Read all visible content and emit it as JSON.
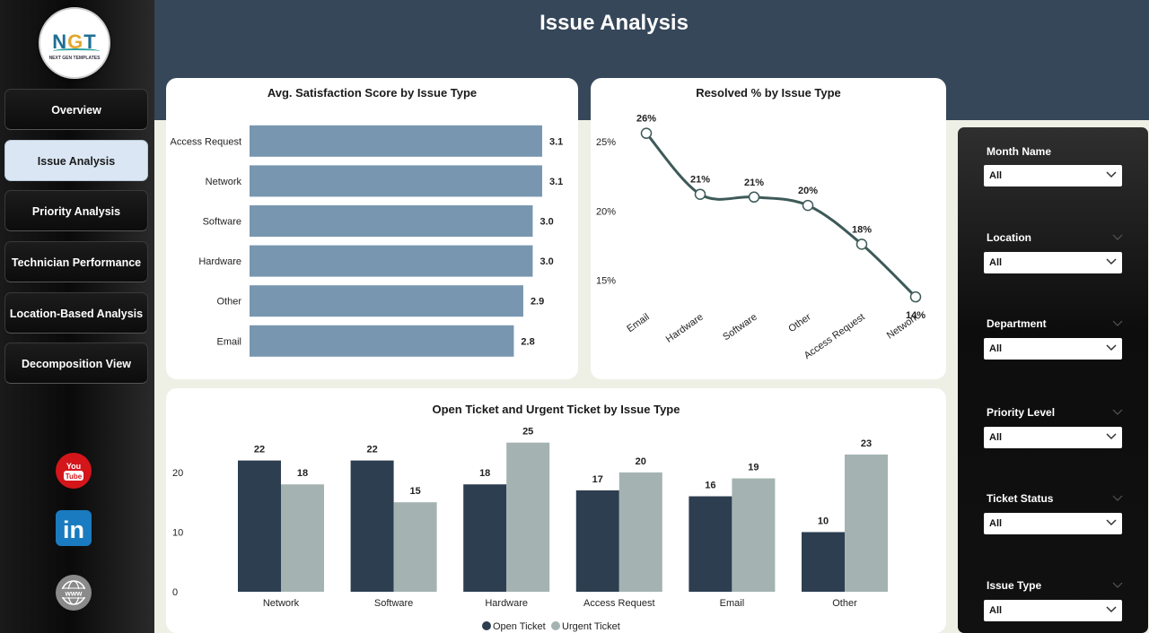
{
  "page": {
    "title": "Issue Analysis"
  },
  "brand": {
    "logo_text": "NGT",
    "logo_subtext": "NEXT GEN TEMPLATES"
  },
  "nav": {
    "items": [
      {
        "label": "Overview",
        "active": false
      },
      {
        "label": "Issue Analysis",
        "active": true
      },
      {
        "label": "Priority Analysis",
        "active": false
      },
      {
        "label": "Technician Performance",
        "active": false
      },
      {
        "label": "Location-Based Analysis",
        "active": false
      },
      {
        "label": "Decomposition View",
        "active": false
      }
    ],
    "social": {
      "youtube_top": "You",
      "youtube_bottom": "Tube",
      "linkedin": "in",
      "web": "www"
    }
  },
  "filters": [
    {
      "label": "Month Name",
      "value": "All"
    },
    {
      "label": "Location",
      "value": "All"
    },
    {
      "label": "Department",
      "value": "All"
    },
    {
      "label": "Priority Level",
      "value": "All"
    },
    {
      "label": "Ticket Status",
      "value": "All"
    },
    {
      "label": "Issue Type",
      "value": "All"
    }
  ],
  "colors": {
    "header": "#364759",
    "bar_satisfaction": "#7896b0",
    "line_resolved": "#3d5a58",
    "open_ticket": "#2e3e51",
    "urgent_ticket": "#a4b3b1"
  },
  "chart_data": [
    {
      "type": "bar",
      "orientation": "horizontal",
      "title": "Avg. Satisfaction Score by Issue Type",
      "categories": [
        "Access Request",
        "Network",
        "Software",
        "Hardware",
        "Other",
        "Email"
      ],
      "values": [
        3.1,
        3.1,
        3.0,
        3.0,
        2.9,
        2.8
      ],
      "value_labels": [
        "3.1",
        "3.1",
        "3.0",
        "3.0",
        "2.9",
        "2.8"
      ],
      "xlim": [
        0,
        3.3
      ]
    },
    {
      "type": "line",
      "title": "Resolved % by Issue Type",
      "categories": [
        "Email",
        "Hardware",
        "Software",
        "Other",
        "Access Request",
        "Network"
      ],
      "values": [
        25.6,
        21.2,
        21.0,
        20.4,
        17.6,
        13.8
      ],
      "value_labels": [
        "26%",
        "21%",
        "21%",
        "20%",
        "18%",
        "14%"
      ],
      "y_ticks": [
        "15%",
        "20%",
        "25%"
      ],
      "y_tick_values": [
        15,
        20,
        25
      ],
      "ylim": [
        12,
        27
      ]
    },
    {
      "type": "bar",
      "title": "Open Ticket and Urgent Ticket by Issue Type",
      "categories": [
        "Network",
        "Software",
        "Hardware",
        "Access Request",
        "Email",
        "Other"
      ],
      "series": [
        {
          "name": "Open Ticket",
          "values": [
            22,
            22,
            18,
            17,
            16,
            10
          ]
        },
        {
          "name": "Urgent Ticket",
          "values": [
            18,
            15,
            25,
            20,
            19,
            23
          ]
        }
      ],
      "y_ticks": [
        0,
        10,
        20
      ],
      "ylim": [
        0,
        27.5
      ],
      "legend": "bottom-center"
    }
  ]
}
